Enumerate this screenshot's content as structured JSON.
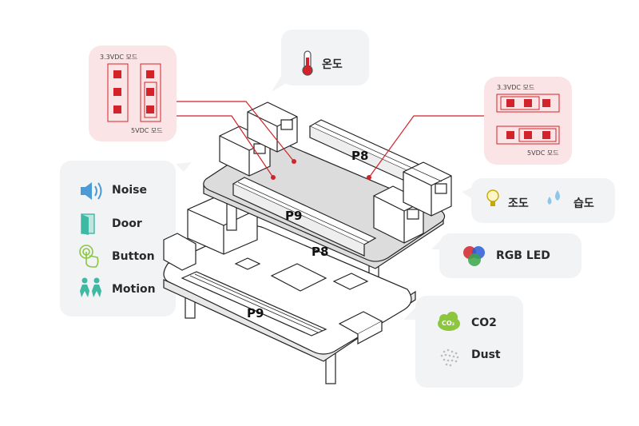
{
  "jumper_left": {
    "top_label": "3.3VDC 모드",
    "bottom_label": "5VDC 모드"
  },
  "jumper_right": {
    "top_label": "3.3VDC 모드",
    "bottom_label": "5VDC 모드"
  },
  "temperature": {
    "label": "온도",
    "icon": "thermometer-icon"
  },
  "light_humidity": {
    "light_label": "조도",
    "humidity_label": "습도",
    "light_icon": "lightbulb-icon",
    "humidity_icon": "droplets-icon"
  },
  "rgb": {
    "label": "RGB LED",
    "icon": "rgb-circles-icon"
  },
  "air": {
    "co2_label": "CO2",
    "dust_label": "Dust",
    "co2_icon_text": "CO₂"
  },
  "inputs": [
    {
      "label": "Noise",
      "icon": "speaker-icon"
    },
    {
      "label": "Door",
      "icon": "door-icon"
    },
    {
      "label": "Button",
      "icon": "touch-icon"
    },
    {
      "label": "Motion",
      "icon": "people-icon"
    }
  ],
  "board": {
    "top_p8": "P8",
    "top_p9": "P9",
    "bottom_p8": "P8",
    "bottom_p9": "P9"
  },
  "colors": {
    "accent_red": "#d2232a",
    "card_grey": "#f1f3f5",
    "card_pink": "#fbe4e6",
    "icon_teal": "#3fb8a4",
    "icon_blue": "#4a9bd6",
    "icon_green": "#8cc63f"
  }
}
